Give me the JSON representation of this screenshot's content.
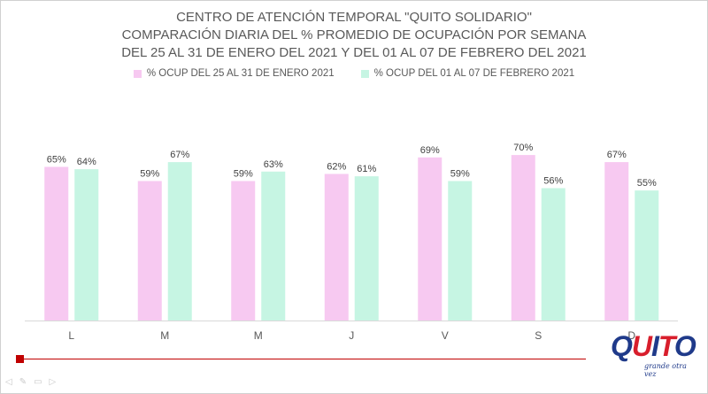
{
  "title_lines": [
    "CENTRO DE ATENCIÓN TEMPORAL \"QUITO SOLIDARIO\"",
    "COMPARACIÓN  DIARIA DEL %  PROMEDIO DE OCUPACIÓN POR SEMANA",
    "DEL 25 AL 31 DE ENERO DEL 2021 Y DEL 01 AL 07 DE FEBRERO DEL 2021"
  ],
  "chart_data": {
    "type": "bar",
    "title": "CENTRO DE ATENCIÓN TEMPORAL \"QUITO SOLIDARIO\" COMPARACIÓN  DIARIA DEL %  PROMEDIO DE OCUPACIÓN POR SEMANA DEL 25 AL 31 DE ENERO DEL 2021 Y DEL 01 AL 07 DE FEBRERO DEL 2021",
    "categories": [
      "L",
      "M",
      "M",
      "J",
      "V",
      "S",
      "D"
    ],
    "series": [
      {
        "name": "% OCUP DEL 25 AL 31 DE ENERO 2021",
        "values": [
          65,
          59,
          59,
          62,
          69,
          70,
          67
        ],
        "labels": [
          "65%",
          "59%",
          "59%",
          "62%",
          "69%",
          "70%",
          "67%"
        ],
        "color": "#f7c9f1"
      },
      {
        "name": "% OCUP DEL 01 AL 07 DE FEBRERO 2021",
        "values": [
          64,
          67,
          63,
          61,
          59,
          56,
          55
        ],
        "labels": [
          "64%",
          "67%",
          "63%",
          "61%",
          "59%",
          "56%",
          "55%"
        ],
        "color": "#c6f5e3"
      }
    ],
    "ylim": [
      0,
      100
    ],
    "legend": "top",
    "grid": false,
    "xlabel": "",
    "ylabel": ""
  },
  "logo": {
    "word_letters": [
      "Q",
      "U",
      "I",
      "T",
      "O"
    ],
    "letter_colors": [
      "#1f3a8a",
      "#d81e2c",
      "#1f3a8a",
      "#d81e2c",
      "#1f3a8a"
    ],
    "subtitle": "grande otra vez"
  },
  "footer_controls": [
    "◁",
    "✎",
    "▭",
    "▷"
  ]
}
